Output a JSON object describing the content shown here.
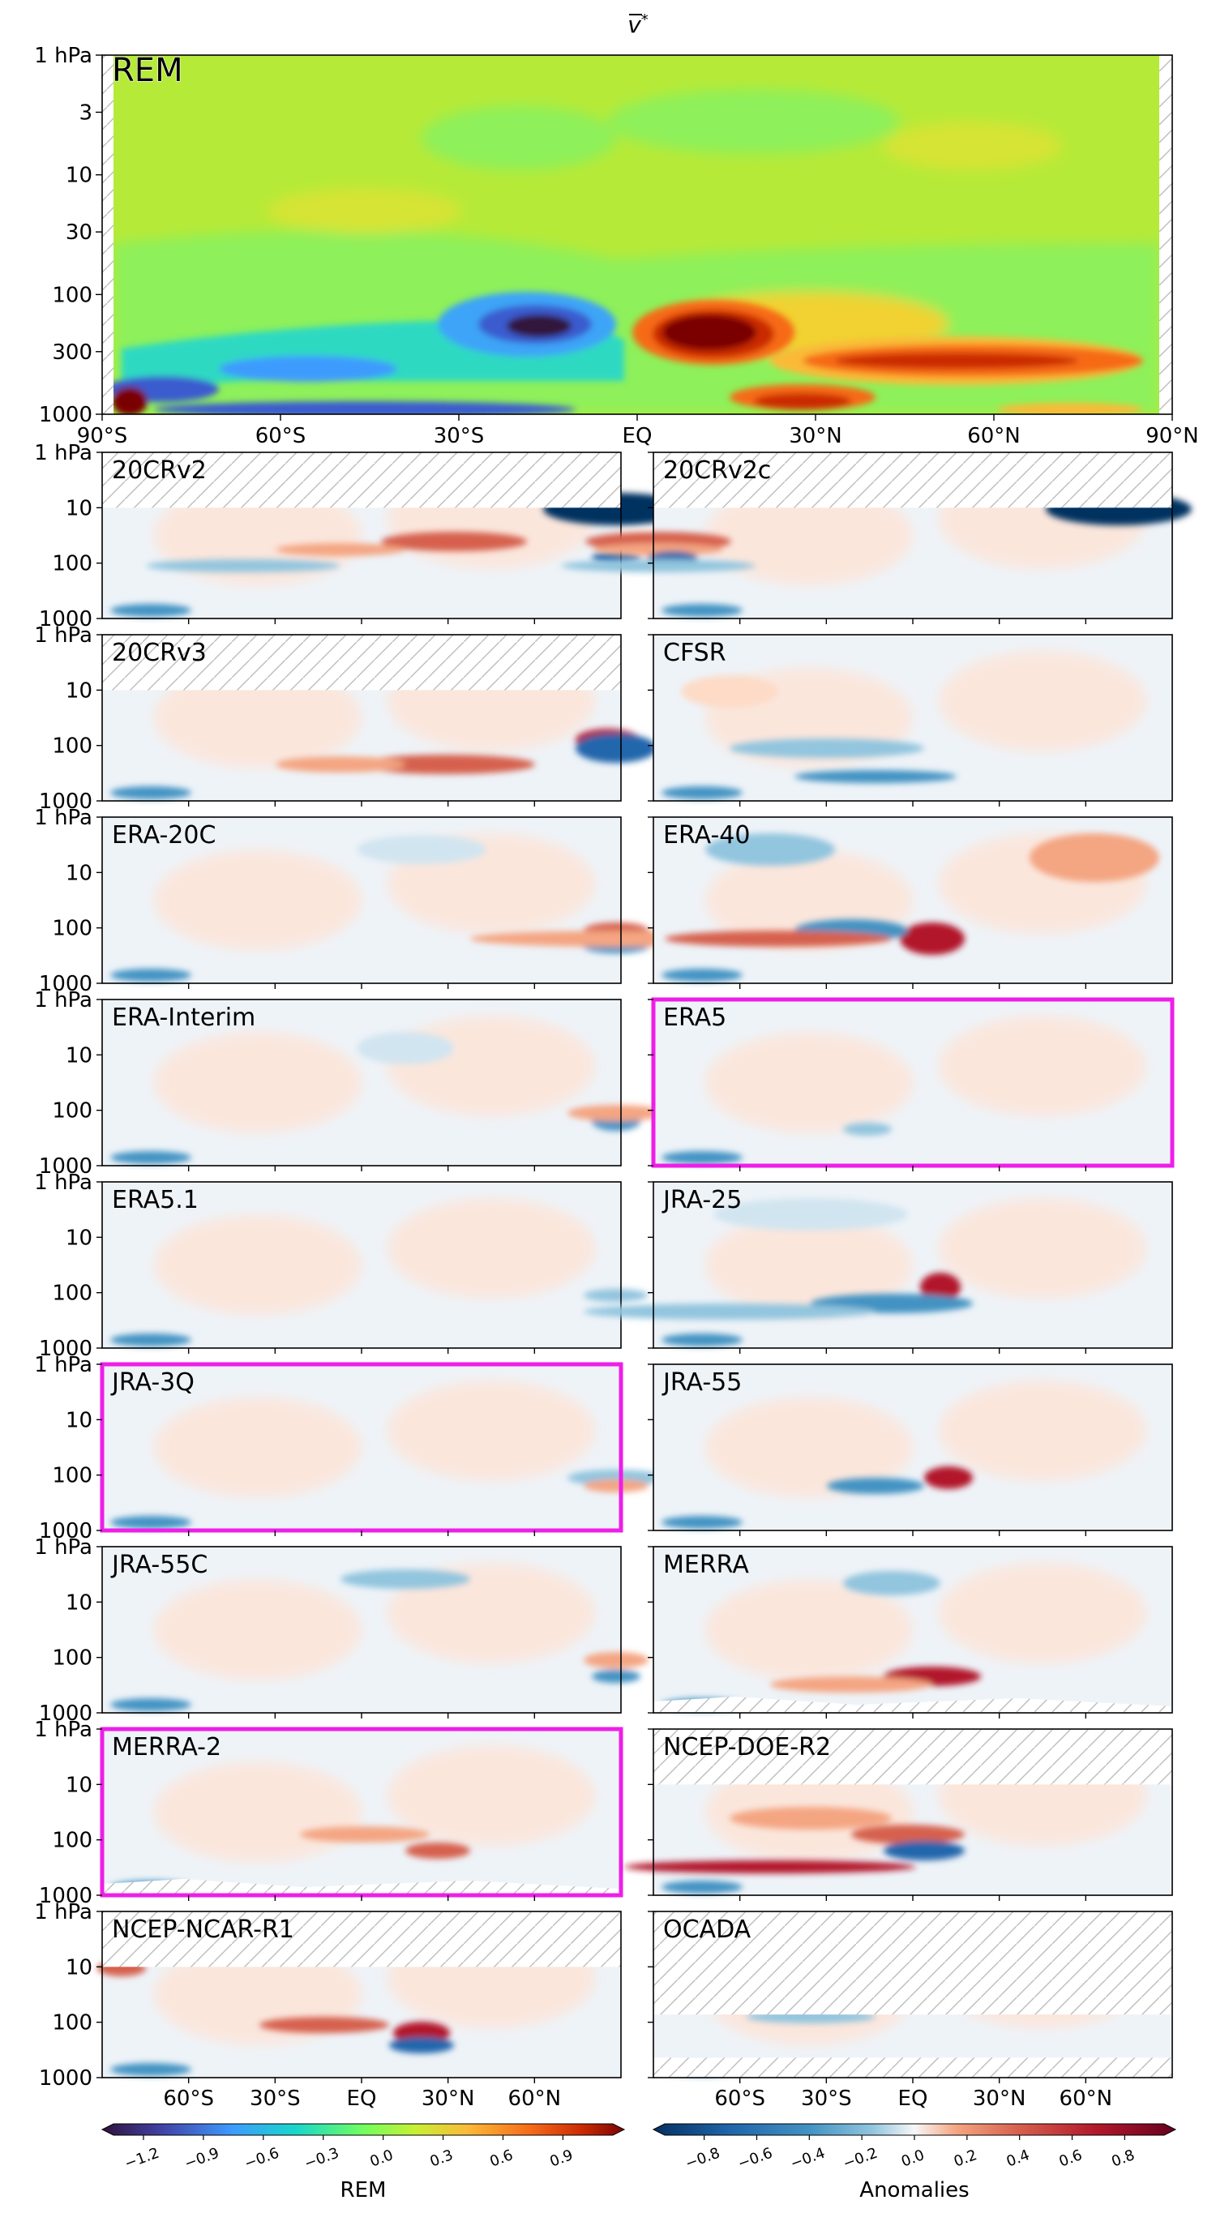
{
  "figure_title": "v̄*",
  "title_base": "v",
  "title_sup": "*",
  "y_axis_ticks": [
    "1 hPa",
    "3",
    "10",
    "30",
    "100",
    "300",
    "1000"
  ],
  "small_y_ticks": [
    "1 hPa",
    "10",
    "100",
    "1000"
  ],
  "x_axis_ticks_top": [
    "90°S",
    "60°S",
    "30°S",
    "EQ",
    "30°N",
    "60°N",
    "90°N"
  ],
  "x_axis_ticks_bottom": [
    "60°S",
    "30°S",
    "EQ",
    "30°N",
    "60°N"
  ],
  "highlight_color": "#ee1ee8",
  "rem_label_color": "#ee1ee8",
  "panels": [
    {
      "name": "20CRv2",
      "highlight": false,
      "top_missing": true
    },
    {
      "name": "20CRv2c",
      "highlight": false,
      "top_missing": true
    },
    {
      "name": "20CRv3",
      "highlight": false,
      "top_missing": true
    },
    {
      "name": "CFSR",
      "highlight": false,
      "top_missing": false
    },
    {
      "name": "ERA-20C",
      "highlight": false,
      "top_missing": false
    },
    {
      "name": "ERA-40",
      "highlight": false,
      "top_missing": false
    },
    {
      "name": "ERA-Interim",
      "highlight": false,
      "top_missing": false
    },
    {
      "name": "ERA5",
      "highlight": true,
      "top_missing": false
    },
    {
      "name": "ERA5.1",
      "highlight": false,
      "top_missing": false
    },
    {
      "name": "JRA-25",
      "highlight": false,
      "top_missing": false
    },
    {
      "name": "JRA-3Q",
      "highlight": true,
      "top_missing": false
    },
    {
      "name": "JRA-55",
      "highlight": false,
      "top_missing": false
    },
    {
      "name": "JRA-55C",
      "highlight": false,
      "top_missing": false
    },
    {
      "name": "MERRA",
      "highlight": false,
      "top_missing": false
    },
    {
      "name": "MERRA-2",
      "highlight": true,
      "top_missing": false
    },
    {
      "name": "NCEP-DOE-R2",
      "highlight": false,
      "top_missing": true
    },
    {
      "name": "NCEP-NCAR-R1",
      "highlight": false,
      "top_missing": true
    },
    {
      "name": "OCADA",
      "highlight": false,
      "top_missing": true
    }
  ],
  "chart_data": [
    {
      "type": "heatmap",
      "name": "REM",
      "title": "v̄*",
      "x": [
        "90°S",
        "60°S",
        "30°S",
        "EQ",
        "30°N",
        "60°N",
        "90°N"
      ],
      "y": [
        "1 hPa",
        "3",
        "10",
        "30",
        "100",
        "300",
        "1000"
      ],
      "y_scale": "log"
    },
    {
      "type": "heatmap",
      "name": "Anomalies",
      "panels": [
        "20CRv2",
        "20CRv2c",
        "20CRv3",
        "CFSR",
        "ERA-20C",
        "ERA-40",
        "ERA-Interim",
        "ERA5",
        "ERA5.1",
        "JRA-25",
        "JRA-3Q",
        "JRA-55",
        "JRA-55C",
        "MERRA",
        "MERRA-2",
        "NCEP-DOE-R2",
        "NCEP-NCAR-R1",
        "OCADA"
      ],
      "y_scale": "log"
    }
  ],
  "colorbars": {
    "rem": {
      "label": "REM",
      "ticks": [
        "−1.2",
        "−0.9",
        "−0.6",
        "−0.3",
        "0.0",
        "0.3",
        "0.6",
        "0.9"
      ]
    },
    "anom": {
      "label": "Anomalies",
      "ticks": [
        "−0.8",
        "−0.6",
        "−0.4",
        "−0.2",
        "0.0",
        "0.2",
        "0.4",
        "0.6",
        "0.8"
      ]
    }
  }
}
